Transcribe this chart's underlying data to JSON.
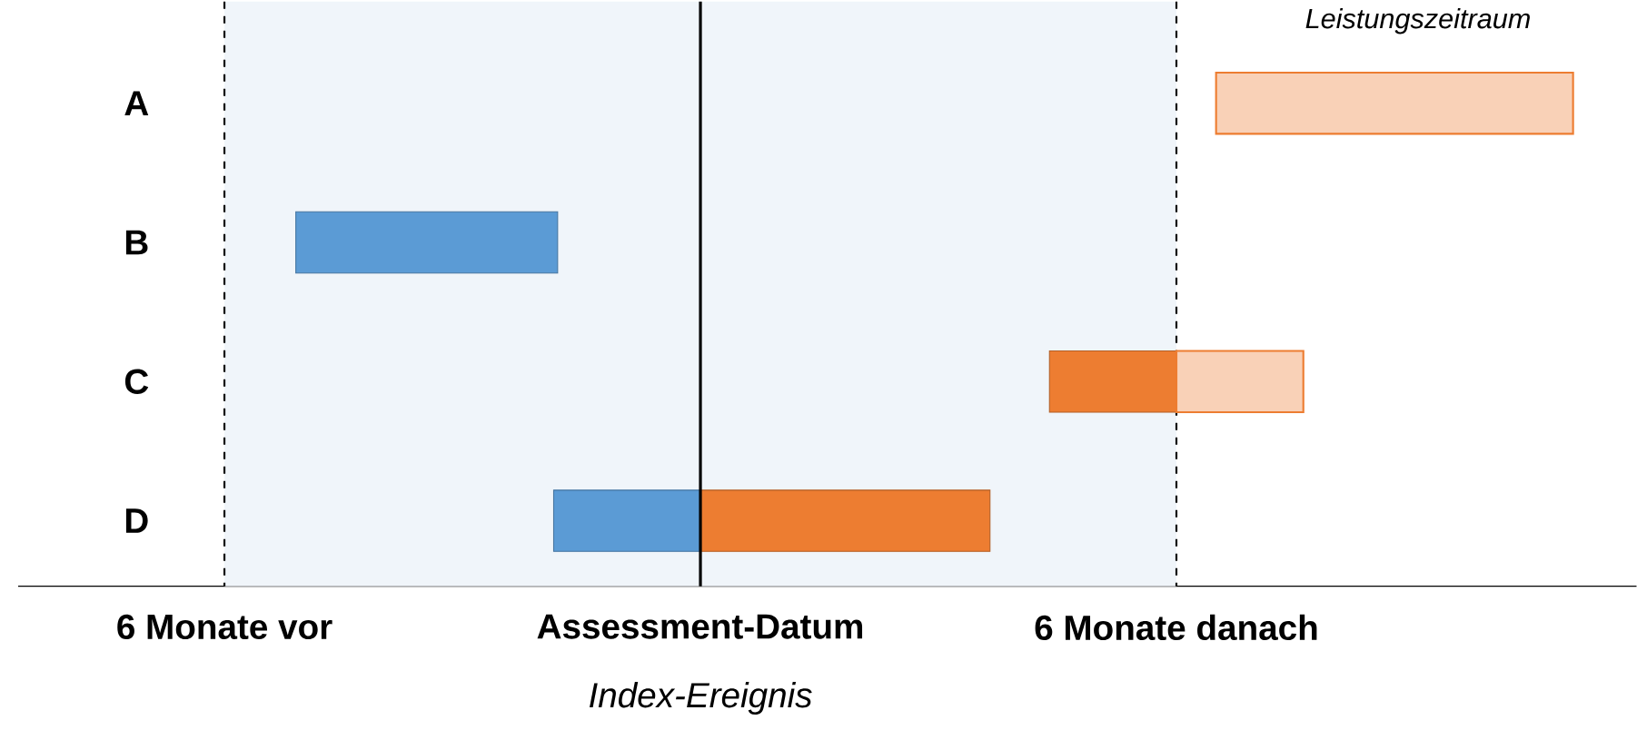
{
  "chart_data": {
    "type": "bar",
    "orientation": "horizontal",
    "categories": [
      "A",
      "B",
      "C",
      "D"
    ],
    "xlim": [
      -8.6,
      11.8
    ],
    "xticks": [
      {
        "value": -6,
        "label": "6 Monate vor"
      },
      {
        "value": 0,
        "label": "Assessment-Datum"
      },
      {
        "value": 6,
        "label": "6 Monate danach"
      }
    ],
    "series": [
      {
        "color": "#5b9bd5",
        "values": [
          null,
          3.3,
          null,
          1.85
        ],
        "base": [
          null,
          -5.1,
          null,
          -1.85
        ]
      },
      {
        "color": "#ed7d31",
        "values": [
          null,
          null,
          1.6,
          3.65
        ],
        "base": [
          null,
          null,
          4.4,
          0
        ]
      },
      {
        "color": "#ed7d31",
        "values": [
          4.5,
          null,
          1.6,
          null
        ],
        "base": [
          6.5,
          null,
          6,
          null
        ]
      }
    ],
    "bands": [
      {
        "axis": "x",
        "from": -6,
        "to": 6,
        "color": "#f0f5fa"
      }
    ],
    "ref_lines": [
      {
        "axis": "x",
        "value": -6,
        "line_style": "dashed"
      },
      {
        "axis": "x",
        "value": 0,
        "line_style": "solid",
        "label": "Index-Ereignis"
      },
      {
        "axis": "x",
        "value": 6,
        "line_style": "dashed"
      }
    ],
    "annotations": [
      "Leistungszeitraum"
    ]
  }
}
